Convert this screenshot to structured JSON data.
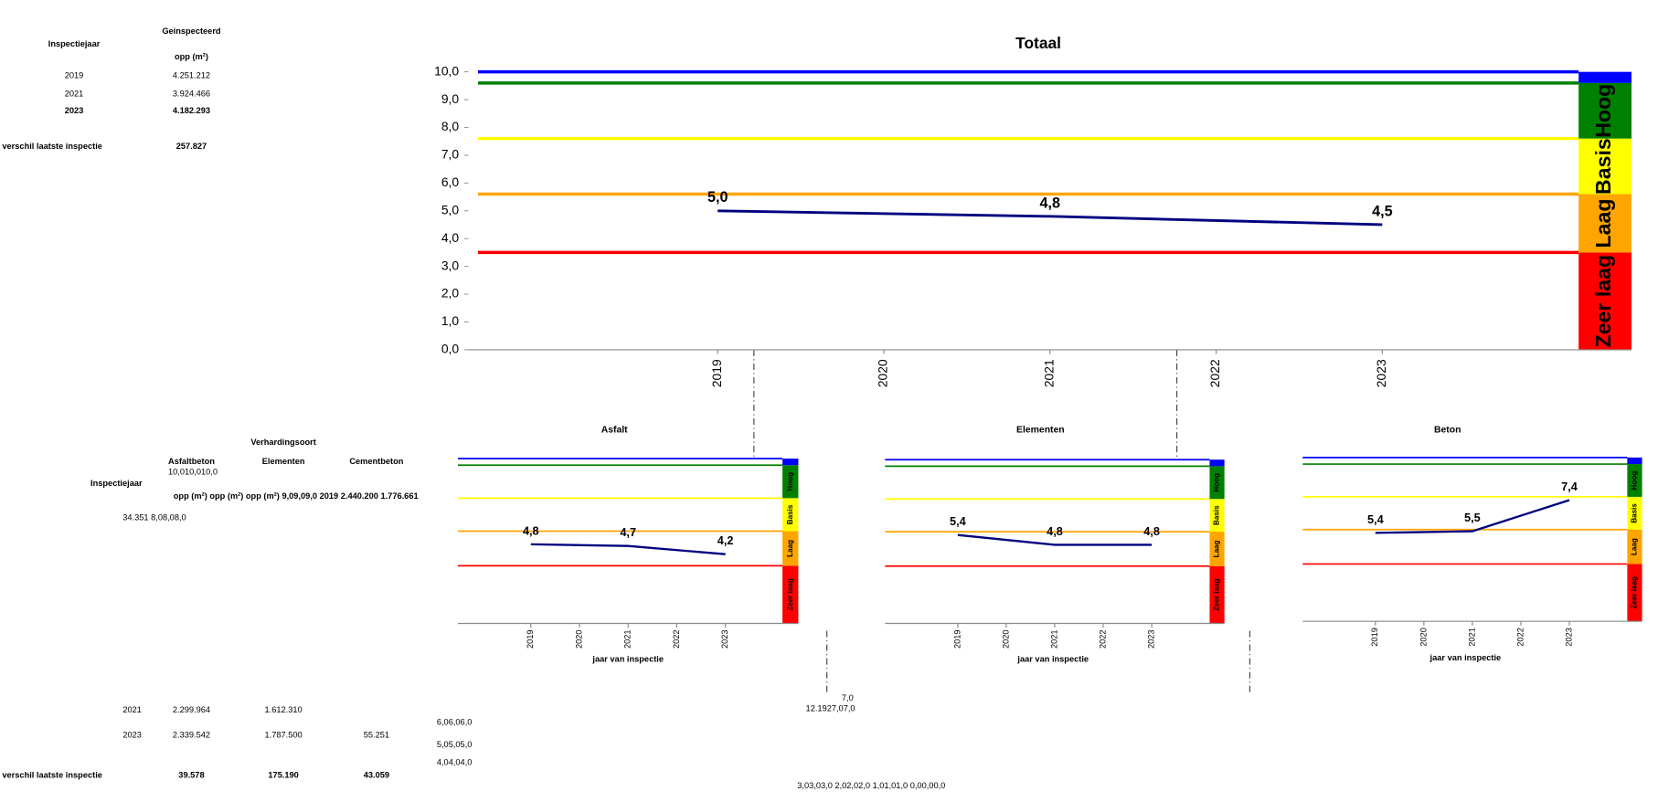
{
  "chart_data": [
    {
      "type": "line",
      "title": "Totaal",
      "x": [
        2019,
        2021,
        2023
      ],
      "values": [
        5.0,
        4.8,
        4.5
      ],
      "value_labels": [
        "5,0",
        "4,8",
        "4,5"
      ],
      "color": "#000080",
      "xlim": [
        2017.5,
        2024.5
      ],
      "xticks": [
        2019,
        2020,
        2021,
        2022,
        2023
      ],
      "ylim": [
        0,
        10
      ],
      "yticks": [
        {
          "value": 0,
          "label": "0,0"
        },
        {
          "value": 1,
          "label": "1,0"
        },
        {
          "value": 2,
          "label": "2,0"
        },
        {
          "value": 3,
          "label": "3,0"
        },
        {
          "value": 4,
          "label": "4,0"
        },
        {
          "value": 5,
          "label": "5,0"
        },
        {
          "value": 6,
          "label": "6,0"
        },
        {
          "value": 7,
          "label": "7,0"
        },
        {
          "value": 8,
          "label": "8,0"
        },
        {
          "value": 9,
          "label": "9,0"
        },
        {
          "value": 10,
          "label": "10,0"
        }
      ],
      "bands": [
        {
          "name": "Zeer laag",
          "color": "#ff0000",
          "from": 0,
          "to": 3.5
        },
        {
          "name": "Laag",
          "color": "#ffa500",
          "from": 3.5,
          "to": 5.6
        },
        {
          "name": "Basis",
          "color": "#ffff00",
          "from": 5.6,
          "to": 7.6
        },
        {
          "name": "Hoog",
          "color": "#008000",
          "from": 7.6,
          "to": 9.6
        },
        {
          "color": "#0000ff",
          "from": 9.6,
          "to": 10
        }
      ]
    },
    {
      "type": "line",
      "title": "Asfalt",
      "xlabel": "jaar van inspectie",
      "x": [
        2019,
        2021,
        2023
      ],
      "values": [
        4.8,
        4.7,
        4.2
      ],
      "value_labels": [
        "4,8",
        "4,7",
        "4,2"
      ],
      "color": "#000080",
      "xlim": [
        2017.5,
        2024.5
      ],
      "xticks": [
        2019,
        2020,
        2021,
        2022,
        2023
      ],
      "ylim": [
        0,
        10
      ],
      "bands": [
        {
          "name": "Zeer laag",
          "color": "#ff0000",
          "from": 0,
          "to": 3.5
        },
        {
          "name": "Laag",
          "color": "#ffa500",
          "from": 3.5,
          "to": 5.6
        },
        {
          "name": "Basis",
          "color": "#ffff00",
          "from": 5.6,
          "to": 7.6
        },
        {
          "name": "Hoog",
          "color": "#008000",
          "from": 7.6,
          "to": 9.6
        },
        {
          "color": "#0000ff",
          "from": 9.6,
          "to": 10
        }
      ]
    },
    {
      "type": "line",
      "title": "Elementen",
      "xlabel": "jaar van inspectie",
      "x": [
        2019,
        2021,
        2023
      ],
      "values": [
        5.4,
        4.8,
        4.8
      ],
      "value_labels": [
        "5,4",
        "4,8",
        "4,8"
      ],
      "color": "#000080",
      "xlim": [
        2017.5,
        2024.5
      ],
      "xticks": [
        2019,
        2020,
        2021,
        2022,
        2023
      ],
      "ylim": [
        0,
        10
      ],
      "bands": [
        {
          "name": "Zeer laag",
          "color": "#ff0000",
          "from": 0,
          "to": 3.5
        },
        {
          "name": "Laag",
          "color": "#ffa500",
          "from": 3.5,
          "to": 5.6
        },
        {
          "name": "Basis",
          "color": "#ffff00",
          "from": 5.6,
          "to": 7.6
        },
        {
          "name": "Hoog",
          "color": "#008000",
          "from": 7.6,
          "to": 9.6
        },
        {
          "color": "#0000ff",
          "from": 9.6,
          "to": 10
        }
      ]
    },
    {
      "type": "line",
      "title": "Beton",
      "xlabel": "jaar van inspectie",
      "x": [
        2019,
        2021,
        2023
      ],
      "values": [
        5.4,
        5.5,
        7.4
      ],
      "value_labels": [
        "5,4",
        "5,5",
        "7,4"
      ],
      "color": "#000080",
      "xlim": [
        2017.5,
        2024.5
      ],
      "xticks": [
        2019,
        2020,
        2021,
        2022,
        2023
      ],
      "ylim": [
        0,
        10
      ],
      "bands": [
        {
          "name": "Zeer laag",
          "color": "#ff0000",
          "from": 0,
          "to": 3.5
        },
        {
          "name": "Laag",
          "color": "#ffa500",
          "from": 3.5,
          "to": 5.6
        },
        {
          "name": "Basis",
          "color": "#ffff00",
          "from": 5.6,
          "to": 7.6
        },
        {
          "name": "Hoog",
          "color": "#008000",
          "from": 7.6,
          "to": 9.6
        },
        {
          "color": "#0000ff",
          "from": 9.6,
          "to": 10
        }
      ]
    }
  ],
  "summary_table": {
    "header_year": "Inspectiejaar",
    "header_group": "Geinspecteerd",
    "header_unit": "opp (m²)",
    "rows": [
      [
        "2019",
        "4.251.212"
      ],
      [
        "2021",
        "3.924.466"
      ],
      [
        "2023",
        "4.182.293"
      ]
    ],
    "diff_label": "verschil laatste inspectie",
    "diff_value": "257.827"
  },
  "type_table": {
    "title": "Verhardingsoort",
    "header_year": "Inspectiejaar",
    "columns": [
      "Asfaltbeton",
      "Elementen",
      "Cementbeton"
    ],
    "rows": [
      [
        "2021",
        "2.299.964",
        "1.612.310"
      ],
      [
        "2023",
        "2.339.542",
        "1.787.500",
        "55.251"
      ]
    ],
    "diff_label": "verschil laatste inspectie",
    "diff_values": [
      "39.578",
      "175.190",
      "43.059"
    ]
  },
  "stray_texts": [
    "10,010,010,0",
    "opp (m²) opp (m²) opp (m²) 9,09,09,0 2019 2.440.200 1.776.661",
    "34.351 8,08,08,0",
    "7,0",
    "12.1927,07,0",
    "6,06,06,0",
    "5,05,05,0",
    "4,04,04,0",
    "3,03,03,0 2,02,02,0 1,01,01,0 0,00,00,0"
  ]
}
